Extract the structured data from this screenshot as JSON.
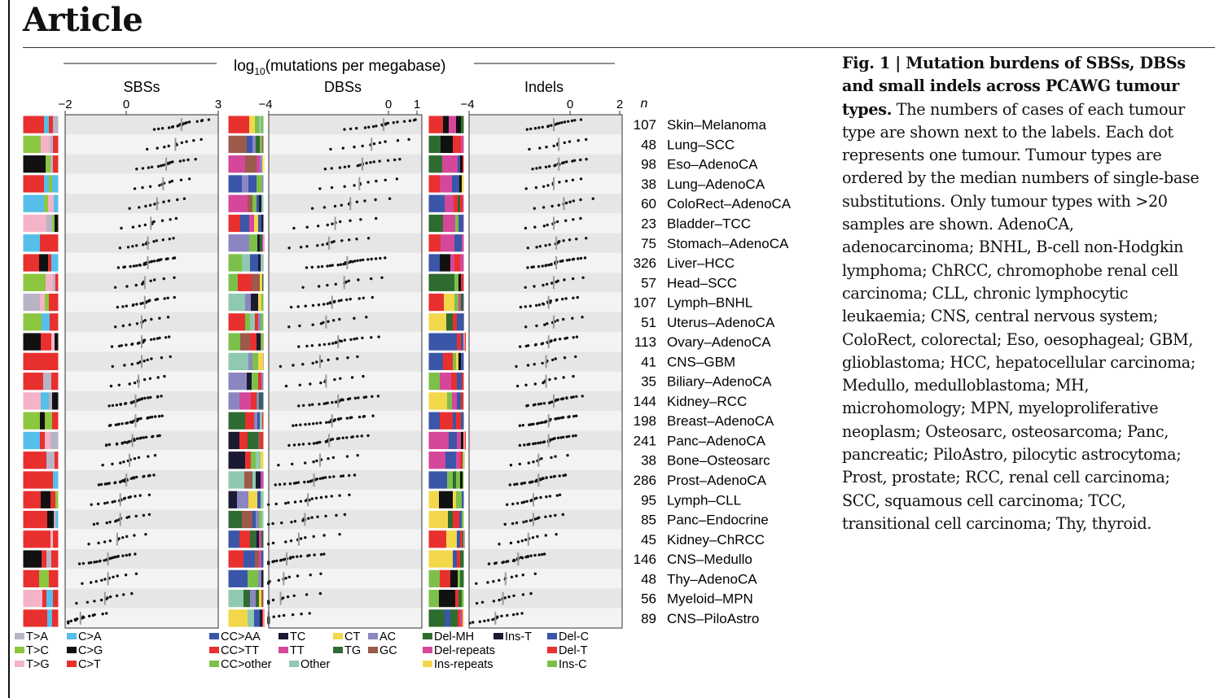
{
  "article_title": "Article",
  "figure": {
    "super_title_main": "log",
    "super_title_sub": "10",
    "super_title_rest": "(mutations per megabase)",
    "n_label": "n",
    "panels": [
      {
        "id": "sbs",
        "title": "SBSs",
        "ticks": [
          "−2",
          "0",
          "3"
        ],
        "tick_values": [
          -2,
          0,
          3
        ]
      },
      {
        "id": "dbs",
        "title": "DBSs",
        "ticks": [
          "−4",
          "0",
          "1"
        ],
        "tick_values": [
          -4,
          0,
          1
        ]
      },
      {
        "id": "indel",
        "title": "Indels",
        "ticks": [
          "−4",
          "0",
          "2"
        ],
        "tick_values": [
          -4,
          0,
          2
        ]
      }
    ],
    "tumour_types": [
      {
        "label": "Skin–Melanoma",
        "n": "107",
        "sbs": 1.8,
        "dbs": -0.1,
        "indel": -0.6
      },
      {
        "label": "Lung–SCC",
        "n": "48",
        "sbs": 1.6,
        "dbs": -0.5,
        "indel": -0.4
      },
      {
        "label": "Eso–AdenoCA",
        "n": "98",
        "sbs": 1.3,
        "dbs": -0.8,
        "indel": -0.4
      },
      {
        "label": "Lung–AdenoCA",
        "n": "38",
        "sbs": 1.2,
        "dbs": -0.9,
        "indel": -0.6
      },
      {
        "label": "ColoRect–AdenoCA",
        "n": "60",
        "sbs": 1.0,
        "dbs": -1.2,
        "indel": -0.2
      },
      {
        "label": "Bladder–TCC",
        "n": "23",
        "sbs": 0.8,
        "dbs": -1.7,
        "indel": -0.6
      },
      {
        "label": "Stomach–AdenoCA",
        "n": "75",
        "sbs": 0.7,
        "dbs": -1.9,
        "indel": -0.5
      },
      {
        "label": "Liver–HCC",
        "n": "326",
        "sbs": 0.7,
        "dbs": -1.3,
        "indel": -0.5
      },
      {
        "label": "Head–SCC",
        "n": "57",
        "sbs": 0.6,
        "dbs": -1.4,
        "indel": -0.6
      },
      {
        "label": "Lymph–BNHL",
        "n": "107",
        "sbs": 0.6,
        "dbs": -1.8,
        "indel": -0.8
      },
      {
        "label": "Uterus–AdenoCA",
        "n": "51",
        "sbs": 0.5,
        "dbs": -2.0,
        "indel": -0.6
      },
      {
        "label": "Ovary–AdenoCA",
        "n": "113",
        "sbs": 0.5,
        "dbs": -1.6,
        "indel": -0.8
      },
      {
        "label": "CNS–GBM",
        "n": "41",
        "sbs": 0.5,
        "dbs": -2.2,
        "indel": -0.9
      },
      {
        "label": "Biliary–AdenoCA",
        "n": "35",
        "sbs": 0.4,
        "dbs": -2.0,
        "indel": -0.9
      },
      {
        "label": "Kidney–RCC",
        "n": "144",
        "sbs": 0.3,
        "dbs": -1.6,
        "indel": -0.6
      },
      {
        "label": "Breast–AdenoCA",
        "n": "198",
        "sbs": 0.3,
        "dbs": -1.8,
        "indel": -0.8
      },
      {
        "label": "Panc–AdenoCA",
        "n": "241",
        "sbs": 0.2,
        "dbs": -1.9,
        "indel": -0.8
      },
      {
        "label": "Bone–Osteosarc",
        "n": "38",
        "sbs": 0.1,
        "dbs": -2.2,
        "indel": -1.2
      },
      {
        "label": "Prost–AdenoCA",
        "n": "286",
        "sbs": 0.0,
        "dbs": -2.4,
        "indel": -1.2
      },
      {
        "label": "Lymph–CLL",
        "n": "95",
        "sbs": -0.2,
        "dbs": -2.6,
        "indel": -1.4
      },
      {
        "label": "Panc–Endocrine",
        "n": "85",
        "sbs": -0.2,
        "dbs": -2.7,
        "indel": -1.4
      },
      {
        "label": "Kidney–ChRCC",
        "n": "45",
        "sbs": -0.3,
        "dbs": -2.9,
        "indel": -1.6
      },
      {
        "label": "CNS–Medullo",
        "n": "146",
        "sbs": -0.6,
        "dbs": -3.3,
        "indel": -2.0
      },
      {
        "label": "Thy–AdenoCA",
        "n": "48",
        "sbs": -0.6,
        "dbs": -3.4,
        "indel": -2.5
      },
      {
        "label": "Myeloid–MPN",
        "n": "56",
        "sbs": -0.7,
        "dbs": -3.5,
        "indel": -2.6
      },
      {
        "label": "CNS–PiloAstro",
        "n": "89",
        "sbs": -1.5,
        "dbs": -3.9,
        "indel": -2.9
      }
    ],
    "legends": [
      {
        "panel": "sbs",
        "items": [
          {
            "label": "T>A",
            "color": "#b9b3c6"
          },
          {
            "label": "C>A",
            "color": "#55bfea"
          },
          {
            "label": "T>C",
            "color": "#8dc63f"
          },
          {
            "label": "C>G",
            "color": "#111111"
          },
          {
            "label": "T>G",
            "color": "#f4b3c8"
          },
          {
            "label": "C>T",
            "color": "#e8302f"
          }
        ]
      },
      {
        "panel": "dbs",
        "items": [
          {
            "label": "CC>AA",
            "color": "#3a56a8"
          },
          {
            "label": "TC",
            "color": "#1a1a33"
          },
          {
            "label": "CT",
            "color": "#f3d74a"
          },
          {
            "label": "AC",
            "color": "#8b86c1"
          },
          {
            "label": "CC>TT",
            "color": "#e8302f"
          },
          {
            "label": "TT",
            "color": "#d5479b"
          },
          {
            "label": "TG",
            "color": "#2f6b32"
          },
          {
            "label": "GC",
            "color": "#9b5a4a"
          },
          {
            "label": "CC>other",
            "color": "#7cc04a"
          },
          {
            "label": "Other",
            "color": "#8ec9b0"
          }
        ]
      },
      {
        "panel": "indel",
        "items": [
          {
            "label": "Del-MH",
            "color": "#2e6b2e"
          },
          {
            "label": "Ins-T",
            "color": "#1a1a33"
          },
          {
            "label": "Del-C",
            "color": "#3a56a8"
          },
          {
            "label": "Del-repeats",
            "color": "#d5479b"
          },
          {
            "label": "Del-T",
            "color": "#e8302f"
          },
          {
            "label": "Ins-repeats",
            "color": "#f3d74a"
          },
          {
            "label": "Ins-C",
            "color": "#7cc04a"
          }
        ]
      }
    ]
  },
  "caption": {
    "title": "Fig. 1 | Mutation burdens of SBSs, DBSs and small indels across PCAWG tumour types.",
    "body": " The numbers of cases of each tumour type are shown next to the labels. Each dot represents one tumour. Tumour types are ordered by the median numbers of single-base substitutions. Only tumour types with >20 samples are shown. AdenoCA, adenocarcinoma; BNHL, B-cell non-Hodgkin lymphoma; ChRCC, chromophobe renal cell carcinoma; CLL, chronic lymphocytic leukaemia; CNS, central nervous system; ColoRect, colorectal; Eso, oesophageal; GBM, glioblastoma; HCC, hepatocellular carcinoma; Medullo, medulloblastoma; MH, microhomology; MPN, myeloproliferative neoplasm; Osteosarc, osteosarcoma; Panc, pancreatic; PiloAstro, pilocytic astrocytoma; Prost, prostate; RCC, renal cell carcinoma; SCC, squamous cell carcinoma; TCC, transitional cell carcinoma; Thy, thyroid."
  }
}
